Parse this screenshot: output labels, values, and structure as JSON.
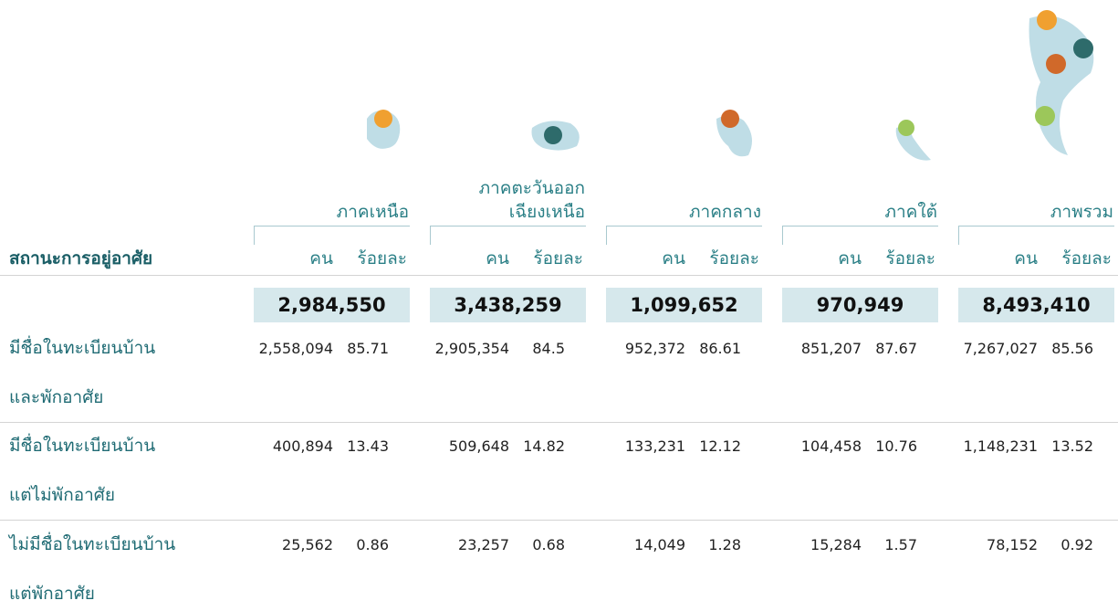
{
  "table": {
    "row_header": "สถานะการอยู่อาศัย",
    "sub_headers": [
      "คน",
      "ร้อยละ"
    ],
    "columns": [
      {
        "name_lines": [
          "ภาคเหนือ"
        ],
        "total": "2,984,550"
      },
      {
        "name_lines": [
          "ภาคตะวันออก",
          "เฉียงเหนือ"
        ],
        "total": "3,438,259"
      },
      {
        "name_lines": [
          "ภาคกลาง"
        ],
        "total": "1,099,652"
      },
      {
        "name_lines": [
          "ภาคใต้"
        ],
        "total": "970,949"
      },
      {
        "name_lines": [
          "ภาพรวม"
        ],
        "total": "8,493,410"
      }
    ],
    "rows": [
      {
        "label_lines": [
          "มีชื่อในทะเบียนบ้าน",
          "และพักอาศัย"
        ],
        "values": [
          "2,558,094",
          "85.71",
          "2,905,354",
          "84.5",
          "952,372",
          "86.61",
          "851,207",
          "87.67",
          "7,267,027",
          "85.56"
        ]
      },
      {
        "label_lines": [
          "มีชื่อในทะเบียนบ้าน",
          "แต่ไม่พักอาศัย"
        ],
        "values": [
          "400,894",
          "13.43",
          "509,648",
          "14.82",
          "133,231",
          "12.12",
          "104,458",
          "10.76",
          "1,148,231",
          "13.52"
        ]
      },
      {
        "label_lines": [
          "ไม่มีชื่อในทะเบียนบ้าน",
          "แต่พักอาศัย"
        ],
        "values": [
          "25,562",
          "0.86",
          "23,257",
          "0.68",
          "14,049",
          "1.28",
          "15,284",
          "1.57",
          "78,152",
          "0.92"
        ]
      }
    ]
  }
}
